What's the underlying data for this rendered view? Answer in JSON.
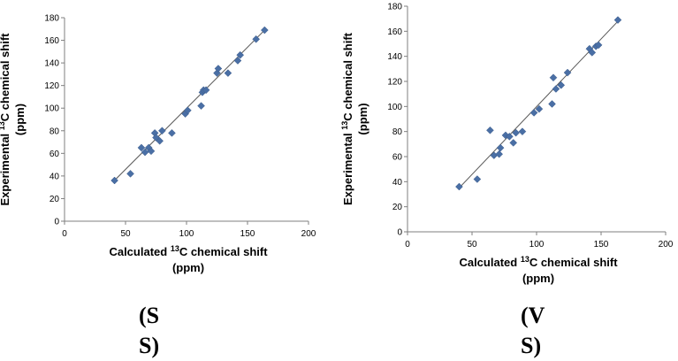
{
  "chart_data": [
    {
      "type": "scatter",
      "xlabel": "Calculated  13C  chemical shift (ppm)",
      "xlabel_main": "Calculated",
      "xlabel_sup": "13",
      "xlabel_tail": "C  chemical shift",
      "xlabel_unit": "(ppm)",
      "ylabel": "Experimental 13C chemical shift (ppm)",
      "ylabel_main": "Experimental",
      "ylabel_sup": "13",
      "ylabel_tail": "C  chemical shift",
      "ylabel_unit": "(ppm)",
      "xlim": [
        0,
        200
      ],
      "ylim": [
        0,
        180
      ],
      "xticks": [
        "0",
        "50",
        "100",
        "150",
        "200"
      ],
      "yticks": [
        "0",
        "20",
        "40",
        "60",
        "80",
        "100",
        "120",
        "140",
        "160",
        "180"
      ],
      "grid": false,
      "marker": "diamond",
      "color": "#4a6fa5",
      "trendline": {
        "x": [
          40,
          164
        ],
        "y": [
          35,
          169
        ]
      },
      "points": [
        [
          41,
          36
        ],
        [
          54,
          42
        ],
        [
          63,
          65
        ],
        [
          66,
          61
        ],
        [
          69,
          65
        ],
        [
          71,
          62
        ],
        [
          74,
          78
        ],
        [
          75,
          74
        ],
        [
          78,
          71
        ],
        [
          80,
          80
        ],
        [
          88,
          78
        ],
        [
          99,
          95
        ],
        [
          101,
          98
        ],
        [
          112,
          102
        ],
        [
          113,
          114
        ],
        [
          114,
          116
        ],
        [
          116,
          116
        ],
        [
          125,
          131
        ],
        [
          126,
          135
        ],
        [
          134,
          131
        ],
        [
          142,
          142
        ],
        [
          144,
          147
        ],
        [
          157,
          161
        ],
        [
          164,
          169
        ]
      ]
    },
    {
      "type": "scatter",
      "xlabel": "Calculated  13C  chemical shift (ppm)",
      "xlabel_main": "Calculated",
      "xlabel_sup": "13",
      "xlabel_tail": "C  chemical shift",
      "xlabel_unit": "(ppm)",
      "ylabel": "Experimental 13C chemical shift (ppm)",
      "ylabel_main": "Experimental",
      "ylabel_sup": "13",
      "ylabel_tail": "C  chemical shift",
      "ylabel_unit": "(ppm)",
      "xlim": [
        0,
        200
      ],
      "ylim": [
        0,
        180
      ],
      "xticks": [
        "0",
        "50",
        "100",
        "150",
        "200"
      ],
      "yticks": [
        "0",
        "20",
        "40",
        "60",
        "80",
        "100",
        "120",
        "140",
        "160",
        "180"
      ],
      "grid": false,
      "marker": "diamond",
      "color": "#4a6fa5",
      "trendline": {
        "x": [
          40,
          164
        ],
        "y": [
          35,
          169
        ]
      },
      "points": [
        [
          40,
          36
        ],
        [
          54,
          42
        ],
        [
          64,
          81
        ],
        [
          67,
          61
        ],
        [
          71,
          62
        ],
        [
          72,
          67
        ],
        [
          76,
          77
        ],
        [
          79,
          76
        ],
        [
          82,
          71
        ],
        [
          84,
          79
        ],
        [
          89,
          80
        ],
        [
          98,
          95
        ],
        [
          102,
          98
        ],
        [
          112,
          102
        ],
        [
          113,
          123
        ],
        [
          115,
          114
        ],
        [
          119,
          117
        ],
        [
          124,
          127
        ],
        [
          141,
          146
        ],
        [
          143,
          143
        ],
        [
          146,
          148
        ],
        [
          148,
          149
        ],
        [
          163,
          169
        ]
      ]
    }
  ],
  "captions": {
    "left": {
      "line1": "(S",
      "line2": "S)"
    },
    "right": {
      "line1": "(V",
      "line2": "S)"
    }
  }
}
